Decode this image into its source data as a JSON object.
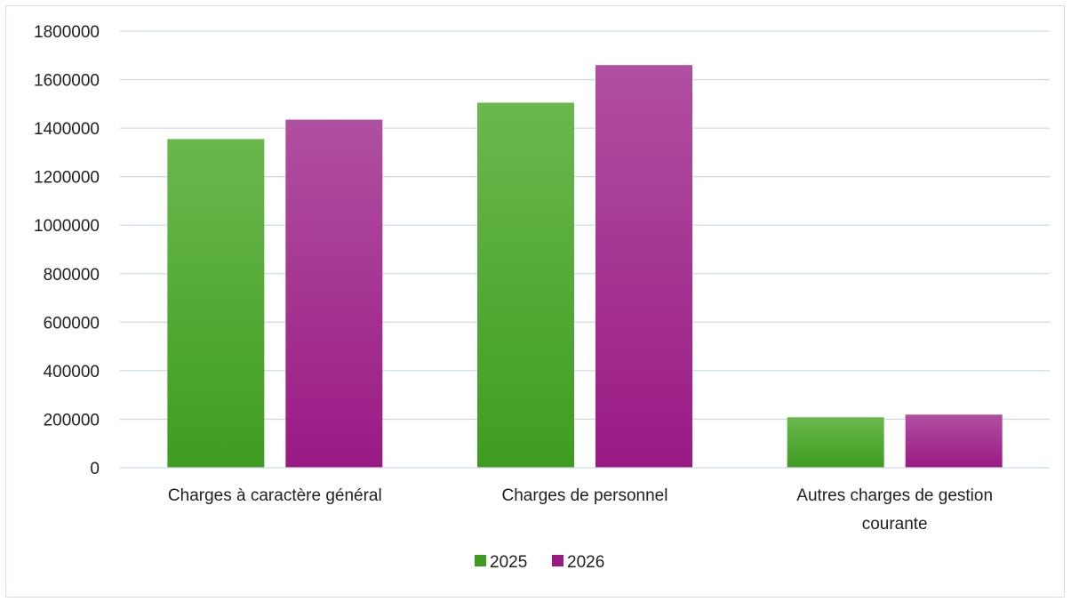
{
  "chart_data": {
    "type": "bar",
    "title": "",
    "xlabel": "",
    "ylabel": "",
    "categories": [
      [
        "Charges à caractère général"
      ],
      [
        "Charges de personnel"
      ],
      [
        "Autres charges de gestion",
        "courante"
      ]
    ],
    "series": [
      {
        "name": "2025",
        "color_top": "#6ab84d",
        "color_bottom": "#3e9c21",
        "values": [
          1355000,
          1505000,
          208000
        ]
      },
      {
        "name": "2026",
        "color_top": "#b04fa0",
        "color_bottom": "#9a1a85",
        "values": [
          1435000,
          1660000,
          219000
        ]
      }
    ],
    "ylim": [
      0,
      1800000
    ],
    "yticks": [
      0,
      200000,
      400000,
      600000,
      800000,
      1000000,
      1200000,
      1400000,
      1600000,
      1800000
    ],
    "grid": true,
    "gridline_color": "#cfdbea",
    "legend_position": "bottom"
  }
}
